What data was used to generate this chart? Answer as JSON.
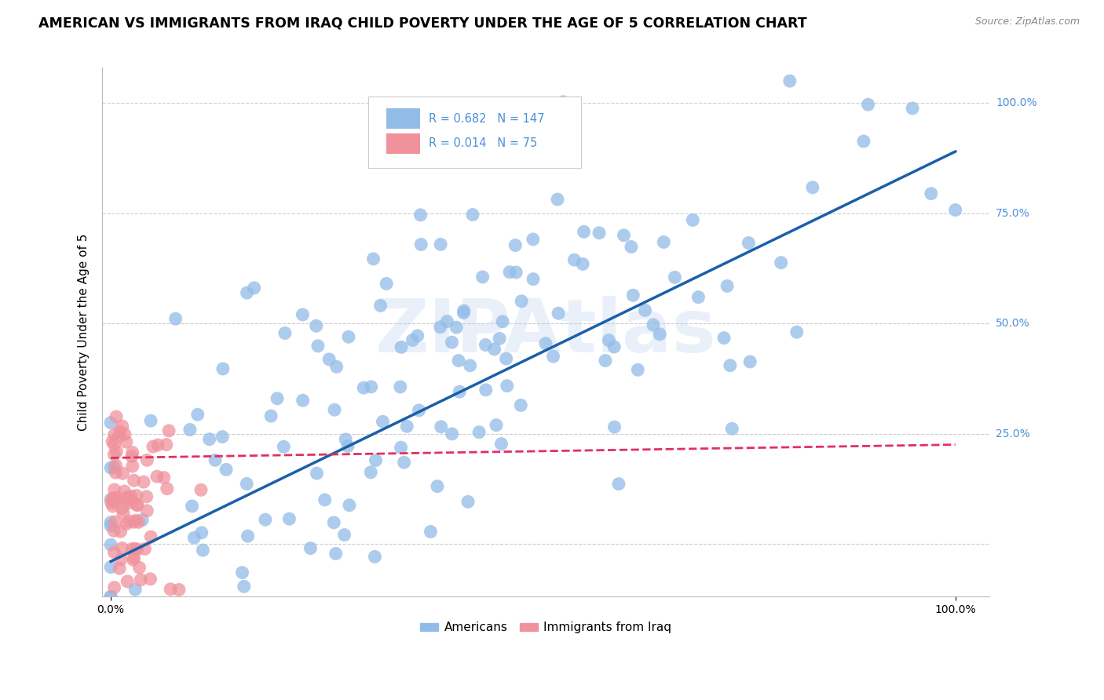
{
  "title": "AMERICAN VS IMMIGRANTS FROM IRAQ CHILD POVERTY UNDER THE AGE OF 5 CORRELATION CHART",
  "source": "Source: ZipAtlas.com",
  "ylabel": "Child Poverty Under the Age of 5",
  "ytick_labels": [
    "25.0%",
    "50.0%",
    "75.0%",
    "100.0%"
  ],
  "ytick_values": [
    0.25,
    0.5,
    0.75,
    1.0
  ],
  "xtick_labels": [
    "0.0%",
    "100.0%"
  ],
  "xtick_values": [
    0.0,
    1.0
  ],
  "xlim": [
    -0.01,
    1.04
  ],
  "ylim": [
    -0.12,
    1.08
  ],
  "americans_color": "#92bce8",
  "iraq_color": "#f0929c",
  "americans_line_color": "#1a5fa8",
  "iraq_line_color": "#e03060",
  "R_american": 0.682,
  "N_american": 147,
  "R_iraq": 0.014,
  "N_iraq": 75,
  "legend_label_american": "Americans",
  "legend_label_iraq": "Immigrants from Iraq",
  "watermark": "ZIPAtlas",
  "background_color": "#ffffff",
  "grid_color": "#cccccc",
  "title_fontsize": 12.5,
  "axis_label_fontsize": 11,
  "tick_fontsize": 10,
  "right_tick_color": "#4a90d9"
}
